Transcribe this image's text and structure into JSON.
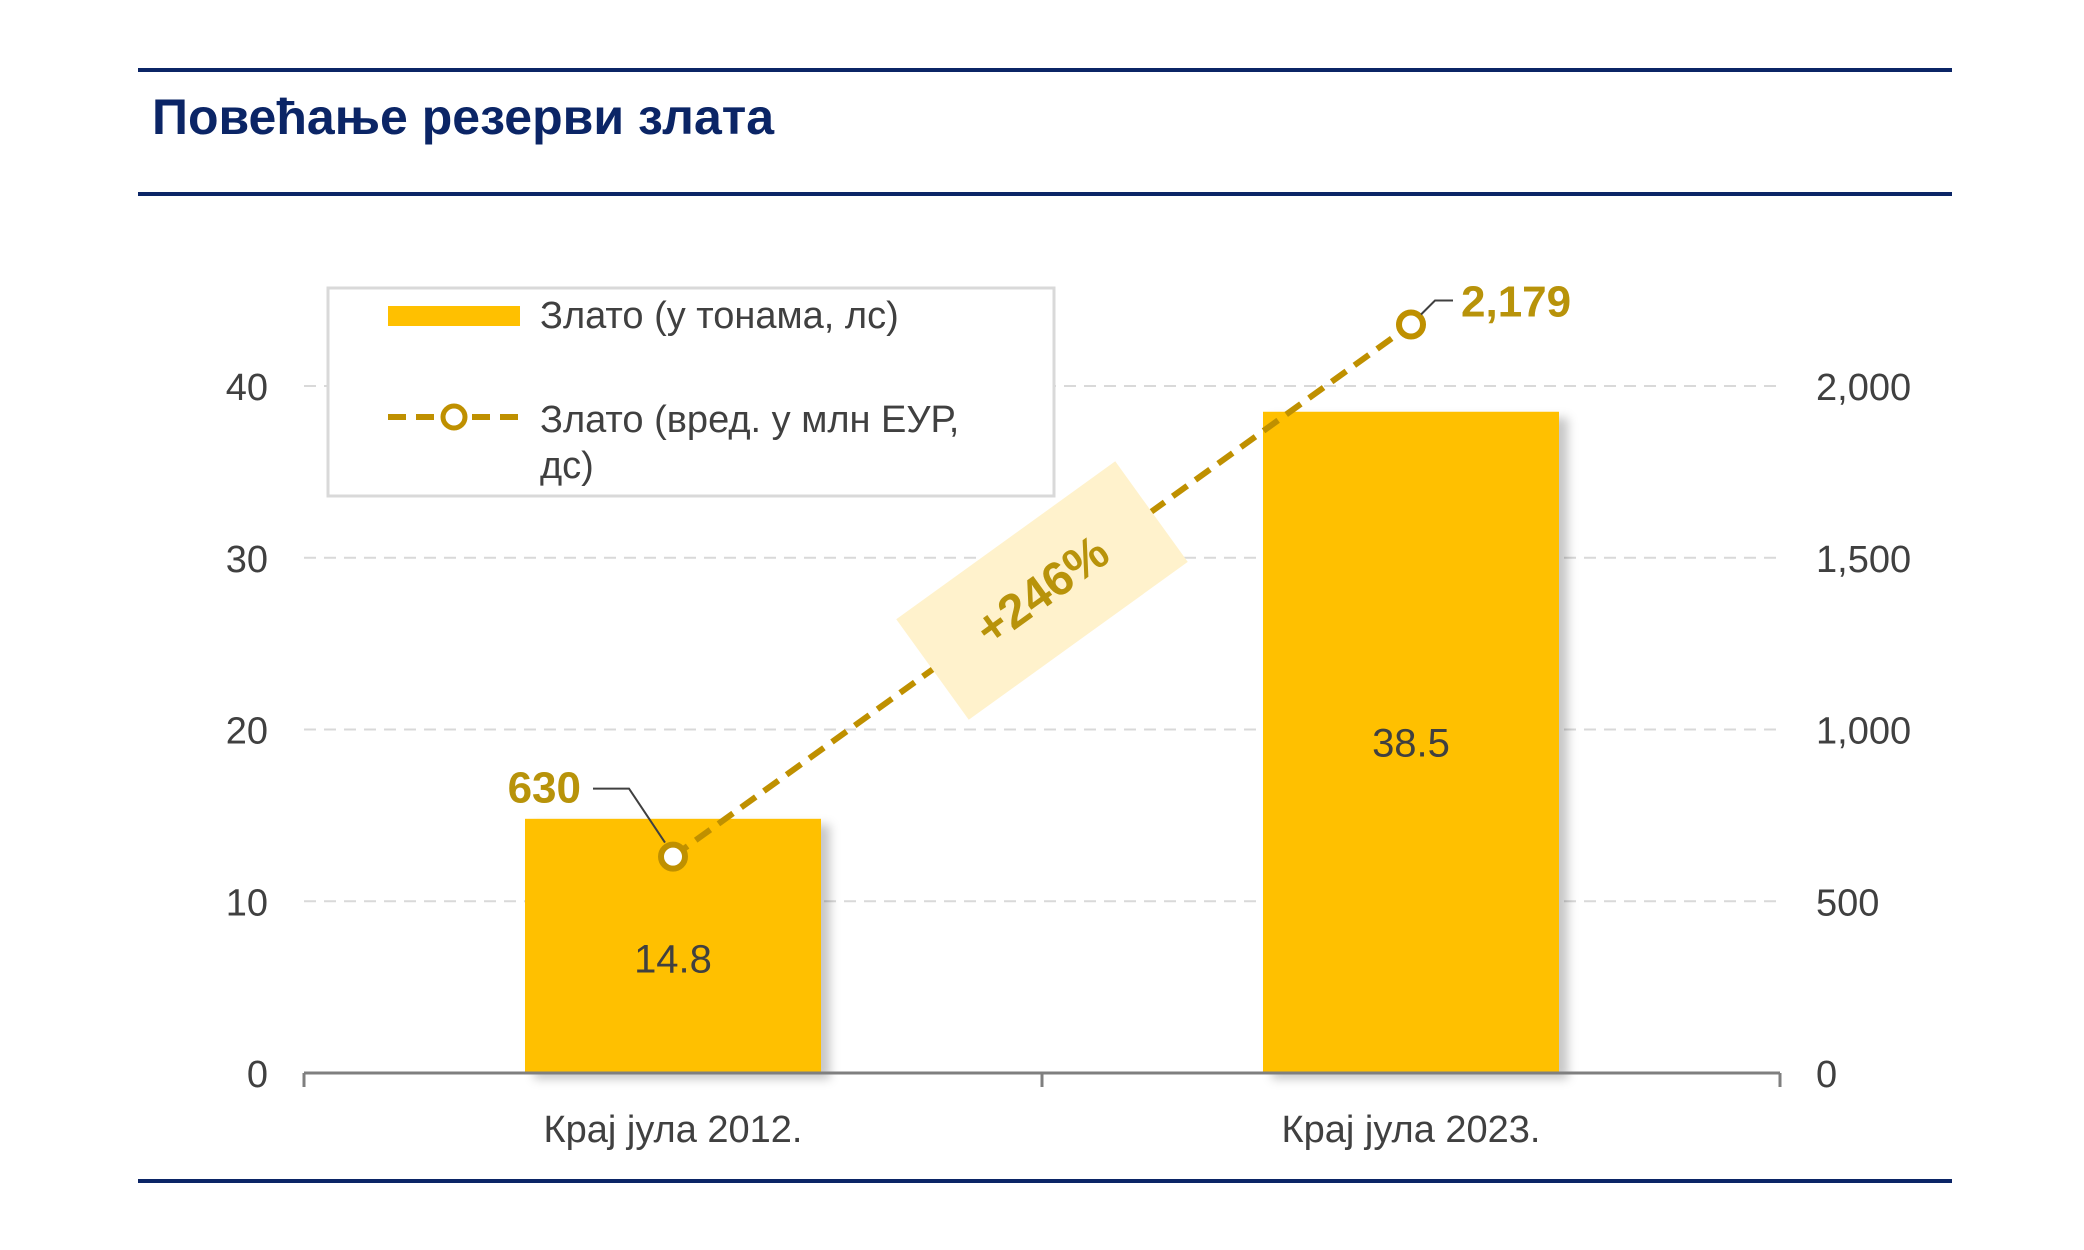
{
  "title": "Повећање резерви злата",
  "colors": {
    "navy": "#0b2566",
    "bar": "#ffc000",
    "line": "#bf9000",
    "label": "#b8930a",
    "grid": "#d9d9d9",
    "axis": "#7f7f7f",
    "text": "#404040",
    "annotation_bg": "#fff2cc"
  },
  "chart_data": {
    "type": "bar",
    "categories": [
      "Крај јула 2012.",
      "Крај јула 2023."
    ],
    "series": [
      {
        "name": "Злато (у тонама, лс)",
        "type": "bar",
        "axis": "left",
        "values": [
          14.8,
          38.5
        ],
        "labels": [
          "14.8",
          "38.5"
        ]
      },
      {
        "name": "Злато (вред. у млн ЕУР, дс)",
        "type": "line",
        "axis": "right",
        "style": "dashed",
        "marker": "circle",
        "values": [
          630,
          2179
        ],
        "labels": [
          "630",
          "2,179"
        ]
      }
    ],
    "y_left": {
      "lim": [
        0,
        40
      ],
      "ticks": [
        0,
        10,
        20,
        30,
        40
      ],
      "tick_labels": [
        "0",
        "10",
        "20",
        "30",
        "40"
      ]
    },
    "y_right": {
      "lim": [
        0,
        2000
      ],
      "ticks": [
        0,
        500,
        1000,
        1500,
        2000
      ],
      "tick_labels": [
        "0",
        "500",
        "1,000",
        "1,500",
        "2,000"
      ]
    },
    "annotation": "+246%",
    "grid": true,
    "legend": {
      "position": "top-left",
      "entries": [
        "Злато (у тонама, лс)",
        "Злато (вред. у млн ЕУР, дс)"
      ]
    }
  }
}
